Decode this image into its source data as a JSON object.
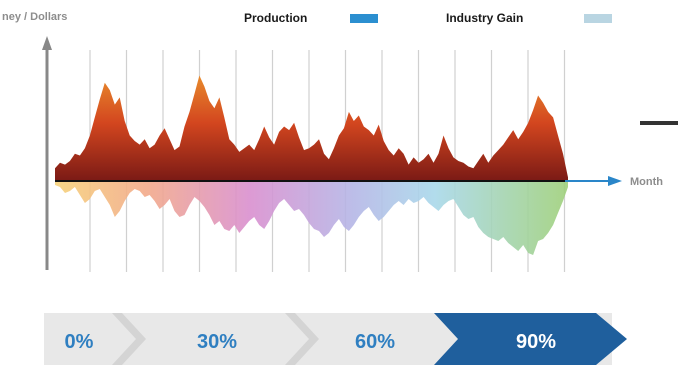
{
  "axis": {
    "y_label": "ney / Dollars",
    "x_label": "Month"
  },
  "legend": {
    "items": [
      {
        "label": "Production",
        "color": "#2b8fd0"
      },
      {
        "label": "Industry Gain",
        "color": "#b9d5e2"
      }
    ]
  },
  "colors": {
    "production_top": "#e88a2c",
    "production_bottom": "#7a1a15",
    "axis": "#888888",
    "baseline": "#111111",
    "x_arrow": "#2a86c9",
    "gridline": "#d0d0d0",
    "progress_light": "#e8e8e8",
    "progress_dark": "#1f5f9d",
    "progress_text_light": "#2f7fc1",
    "progress_text_dark": "#ffffff"
  },
  "progress": {
    "stages": [
      {
        "label": "0%",
        "active": false
      },
      {
        "label": "30%",
        "active": false
      },
      {
        "label": "60%",
        "active": false
      },
      {
        "label": "90%",
        "active": true
      }
    ]
  },
  "chart_data": {
    "type": "area",
    "ylabel": "ney / Dollars",
    "xlabel": "Month",
    "grid": true,
    "legend_position": "top",
    "ylim": [
      -80,
      120
    ],
    "x": [
      0,
      1,
      2,
      3,
      4,
      5,
      6,
      7,
      8,
      9,
      10,
      11,
      12,
      13,
      14,
      15,
      16,
      17,
      18,
      19,
      20,
      21,
      22,
      23,
      24,
      25,
      26,
      27,
      28,
      29,
      30,
      31,
      32,
      33,
      34,
      35,
      36,
      37,
      38,
      39,
      40,
      41,
      42,
      43,
      44,
      45,
      46,
      47,
      48,
      49,
      50,
      51,
      52,
      53,
      54,
      55,
      56,
      57,
      58,
      59,
      60,
      61,
      62,
      63,
      64,
      65,
      66,
      67,
      68,
      69,
      70,
      71,
      72,
      73,
      74,
      75,
      76,
      77,
      78,
      79,
      80,
      81,
      82,
      83,
      84,
      85,
      86,
      87,
      88,
      89,
      90,
      91,
      92,
      93,
      94,
      95,
      96,
      97,
      98,
      99,
      100,
      101,
      102,
      103
    ],
    "series": [
      {
        "name": "Production",
        "values": [
          14,
          20,
          18,
          22,
          30,
          28,
          36,
          50,
          70,
          90,
          108,
          100,
          84,
          92,
          66,
          50,
          44,
          40,
          46,
          36,
          40,
          50,
          58,
          46,
          34,
          38,
          60,
          76,
          96,
          116,
          104,
          88,
          80,
          92,
          70,
          46,
          40,
          32,
          36,
          40,
          34,
          46,
          60,
          48,
          40,
          54,
          60,
          56,
          64,
          48,
          34,
          36,
          40,
          46,
          30,
          24,
          36,
          50,
          58,
          76,
          66,
          72,
          60,
          56,
          50,
          62,
          44,
          34,
          28,
          36,
          30,
          18,
          26,
          20,
          24,
          30,
          20,
          30,
          50,
          36,
          26,
          22,
          20,
          16,
          14,
          22,
          30,
          20,
          28,
          34,
          40,
          48,
          56,
          46,
          54,
          64,
          78,
          94,
          86,
          76,
          70,
          50,
          30,
          4
        ]
      },
      {
        "name": "Industry Gain",
        "values": [
          -4,
          -6,
          -12,
          -10,
          -6,
          -14,
          -22,
          -18,
          -10,
          -8,
          -16,
          -24,
          -36,
          -30,
          -20,
          -12,
          -8,
          -10,
          -16,
          -14,
          -20,
          -28,
          -24,
          -18,
          -30,
          -36,
          -34,
          -24,
          -16,
          -20,
          -26,
          -34,
          -44,
          -40,
          -48,
          -50,
          -44,
          -52,
          -46,
          -40,
          -36,
          -44,
          -48,
          -40,
          -30,
          -22,
          -18,
          -24,
          -30,
          -28,
          -34,
          -42,
          -48,
          -50,
          -56,
          -52,
          -44,
          -38,
          -46,
          -50,
          -44,
          -36,
          -30,
          -26,
          -34,
          -40,
          -36,
          -30,
          -24,
          -20,
          -24,
          -18,
          -22,
          -20,
          -16,
          -22,
          -26,
          -30,
          -24,
          -20,
          -18,
          -26,
          -34,
          -38,
          -36,
          -46,
          -52,
          -56,
          -58,
          -60,
          -56,
          -62,
          -66,
          -70,
          -64,
          -72,
          -74,
          -60,
          -58,
          -52,
          -44,
          -32,
          -20,
          -6
        ]
      }
    ]
  }
}
